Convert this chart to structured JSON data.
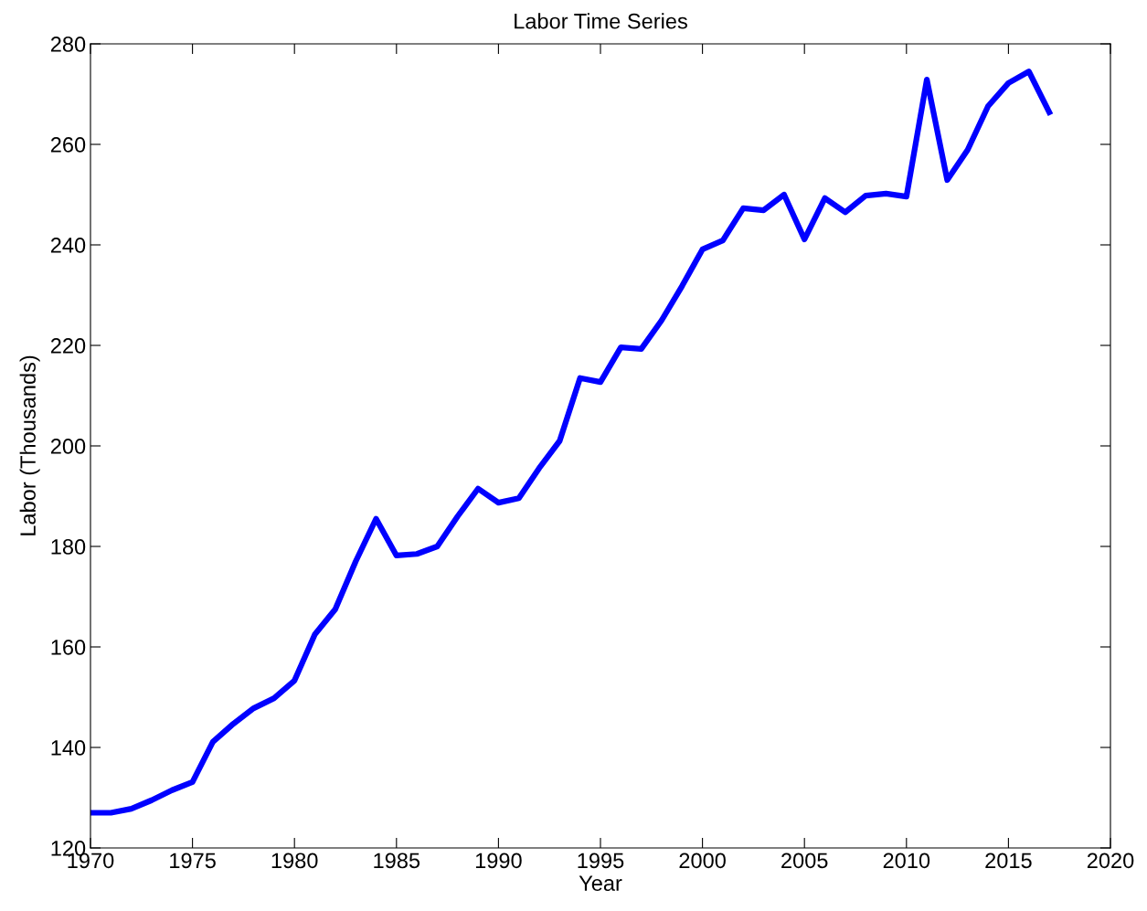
{
  "chart_data": {
    "type": "line",
    "title": "Labor Time Series",
    "xlabel": "Year",
    "ylabel": "Labor (Thousands)",
    "x": [
      1970,
      1971,
      1972,
      1973,
      1974,
      1975,
      1976,
      1977,
      1978,
      1979,
      1980,
      1981,
      1982,
      1983,
      1984,
      1985,
      1986,
      1987,
      1988,
      1989,
      1990,
      1991,
      1992,
      1993,
      1994,
      1995,
      1996,
      1997,
      1998,
      1999,
      2000,
      2001,
      2002,
      2003,
      2004,
      2005,
      2006,
      2007,
      2008,
      2009,
      2010,
      2011,
      2012,
      2013,
      2014,
      2015,
      2016,
      2017
    ],
    "series": [
      {
        "color": "#0000ff",
        "values": [
          127,
          127,
          127.8,
          129.5,
          131.5,
          133.1,
          141.1,
          144.7,
          147.8,
          149.8,
          153.3,
          162.5,
          167.5,
          177,
          185.5,
          178.2,
          178.5,
          180,
          186,
          191.5,
          188.7,
          189.6,
          195.6,
          201,
          213.5,
          212.7,
          219.6,
          219.3,
          225,
          231.8,
          239.1,
          240.9,
          247.3,
          246.9,
          250,
          241.1,
          249.3,
          246.5,
          249.8,
          250.2,
          249.6,
          272.9,
          252.9,
          258.9,
          267.6,
          272.2,
          274.5,
          266.4
        ]
      }
    ],
    "xlim": [
      1970,
      2020
    ],
    "xticks": [
      1970,
      1975,
      1980,
      1985,
      1990,
      1995,
      2000,
      2005,
      2010,
      2015,
      2020
    ],
    "ylim": [
      120,
      280
    ],
    "yticks": [
      120,
      140,
      160,
      180,
      200,
      220,
      240,
      260,
      280
    ],
    "grid": false,
    "legend": false,
    "marker": "none",
    "line_style": "solid"
  }
}
